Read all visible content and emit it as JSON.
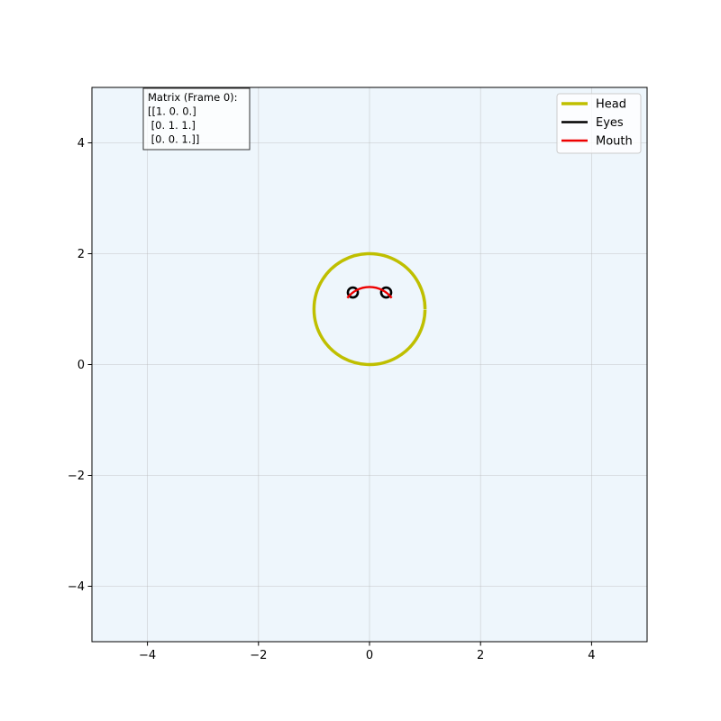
{
  "chart_data": {
    "type": "line",
    "title": "",
    "xlabel": "",
    "ylabel": "",
    "xlim": [
      -5,
      5
    ],
    "ylim": [
      -5,
      5
    ],
    "x_ticks": [
      -4,
      -2,
      0,
      2,
      4
    ],
    "y_ticks": [
      -4,
      -2,
      0,
      2,
      4
    ],
    "x_tick_labels": [
      "−4",
      "−2",
      "0",
      "2",
      "4"
    ],
    "y_tick_labels": [
      "−4",
      "−2",
      "0",
      "2",
      "4"
    ],
    "grid": true,
    "background_color": "#eef6fc",
    "legend_position": "top-right",
    "series": [
      {
        "name": "Head",
        "color": "#bfbf00",
        "shape": "circle",
        "center": [
          0,
          1
        ],
        "radius": 1,
        "angle_range_deg": [
          0,
          360
        ]
      },
      {
        "name": "Eyes",
        "color": "#000000",
        "shape": "circles",
        "centers": [
          [
            -0.3,
            1.3
          ],
          [
            0.3,
            1.3
          ]
        ],
        "radius": 0.09
      },
      {
        "name": "Mouth",
        "color": "#ee0000",
        "shape": "arc",
        "center": [
          0,
          0.9
        ],
        "radius": 0.5,
        "angle_range_deg": [
          37,
          143
        ]
      }
    ],
    "annotation": {
      "lines": [
        "Matrix (Frame 0):",
        "[[1. 0. 0.]",
        " [0. 1. 1.]",
        " [0. 0. 1.]]"
      ],
      "position": "top-left"
    }
  }
}
